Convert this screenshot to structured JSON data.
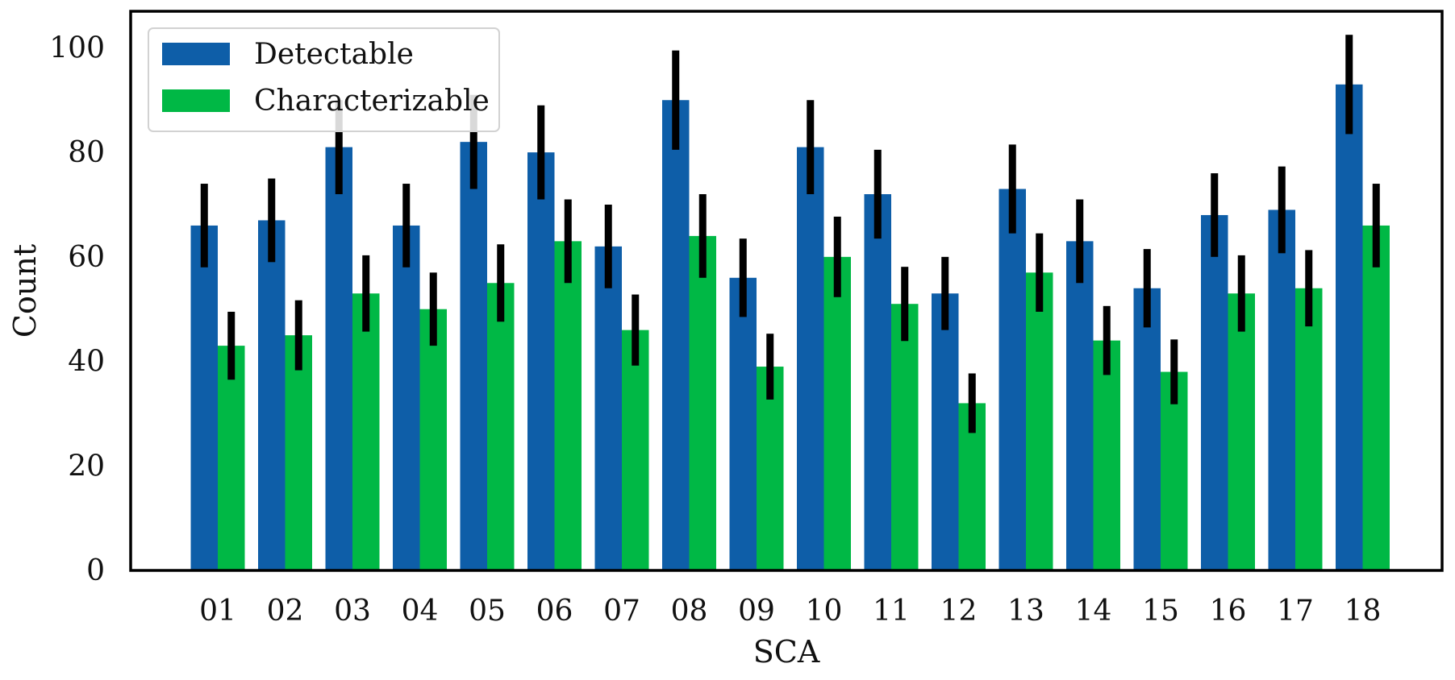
{
  "chart_data": {
    "type": "bar",
    "title": "",
    "xlabel": "SCA",
    "ylabel": "Count",
    "ylim": [
      0,
      107
    ],
    "yticks": [
      0,
      20,
      40,
      60,
      80,
      100
    ],
    "grid": false,
    "legend_position": "top-left",
    "categories": [
      "01",
      "02",
      "03",
      "04",
      "05",
      "06",
      "07",
      "08",
      "09",
      "10",
      "11",
      "12",
      "13",
      "14",
      "15",
      "16",
      "17",
      "18"
    ],
    "series": [
      {
        "name": "Detectable",
        "color": "#0e5ea8",
        "values": [
          66,
          67,
          81,
          66,
          82,
          80,
          62,
          90,
          56,
          81,
          72,
          53,
          73,
          63,
          54,
          68,
          69,
          93
        ],
        "error": [
          8,
          8,
          9,
          8,
          9,
          9,
          8,
          9.5,
          7.5,
          9,
          8.5,
          7,
          8.5,
          8,
          7.5,
          8,
          8.3,
          9.5
        ]
      },
      {
        "name": "Characterizable",
        "color": "#00b845",
        "values": [
          43,
          45,
          53,
          50,
          55,
          63,
          46,
          64,
          39,
          60,
          51,
          32,
          57,
          44,
          38,
          53,
          54,
          66
        ],
        "error": [
          6.5,
          6.7,
          7.3,
          7,
          7.4,
          8,
          6.8,
          8,
          6.3,
          7.7,
          7.1,
          5.7,
          7.5,
          6.6,
          6.2,
          7.3,
          7.3,
          8
        ]
      }
    ],
    "error_color": "#000000"
  }
}
